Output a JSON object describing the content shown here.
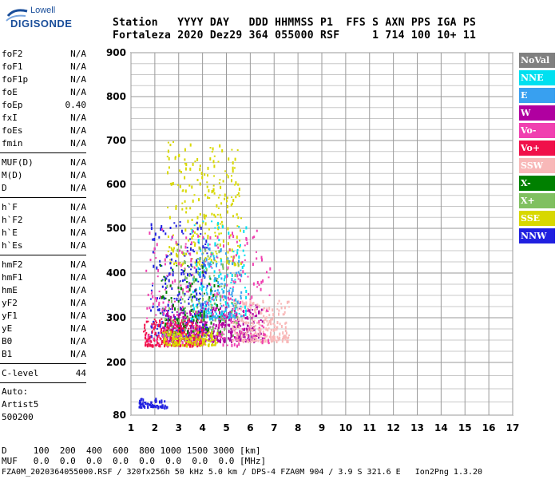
{
  "logo": {
    "top": "Lowell",
    "main": "DIGISONDE"
  },
  "header": {
    "line1": "Station   YYYY DAY   DDD HHMMSS P1  FFS S AXN PPS IGA PS",
    "line2": "Fortaleza 2020 Dez29 364 055000 RSF     1 714 100 10+ 11"
  },
  "params": {
    "group1": [
      {
        "name": "foF2",
        "value": "N/A"
      },
      {
        "name": "foF1",
        "value": "N/A"
      },
      {
        "name": "foF1p",
        "value": "N/A"
      },
      {
        "name": "foE",
        "value": "N/A"
      },
      {
        "name": "foEp",
        "value": "0.40"
      },
      {
        "name": "fxI",
        "value": "N/A"
      },
      {
        "name": "foEs",
        "value": "N/A"
      },
      {
        "name": "fmin",
        "value": "N/A"
      }
    ],
    "group2": [
      {
        "name": "MUF(D)",
        "value": "N/A"
      },
      {
        "name": "M(D)",
        "value": "N/A"
      },
      {
        "name": "D",
        "value": "N/A"
      }
    ],
    "group3": [
      {
        "name": "h`F",
        "value": "N/A"
      },
      {
        "name": "h`F2",
        "value": "N/A"
      },
      {
        "name": "h`E",
        "value": "N/A"
      },
      {
        "name": "h`Es",
        "value": "N/A"
      }
    ],
    "group4": [
      {
        "name": "hmF2",
        "value": "N/A"
      },
      {
        "name": "hmF1",
        "value": "N/A"
      },
      {
        "name": "hmE",
        "value": "N/A"
      },
      {
        "name": "yF2",
        "value": "N/A"
      },
      {
        "name": "yF1",
        "value": "N/A"
      },
      {
        "name": "yE",
        "value": "N/A"
      },
      {
        "name": "B0",
        "value": "N/A"
      },
      {
        "name": "B1",
        "value": "N/A"
      }
    ],
    "clevel": {
      "name": "C-level",
      "value": "44"
    }
  },
  "auto": {
    "line1": "Auto:",
    "line2": "Artist5",
    "line3": "500200"
  },
  "legend": [
    {
      "label": "NoVal",
      "color": "#808080"
    },
    {
      "label": "NNE",
      "color": "#00e0f0"
    },
    {
      "label": "E",
      "color": "#38a0f0"
    },
    {
      "label": "W",
      "color": "#b000a0"
    },
    {
      "label": "Vo-",
      "color": "#f040b0"
    },
    {
      "label": "Vo+",
      "color": "#f0104a"
    },
    {
      "label": "SSW",
      "color": "#f8b8b8"
    },
    {
      "label": "X-",
      "color": "#008000"
    },
    {
      "label": "X+",
      "color": "#80c060"
    },
    {
      "label": "SSE",
      "color": "#d8d800"
    },
    {
      "label": "NNW",
      "color": "#2020e0"
    }
  ],
  "chart_data": {
    "type": "scatter",
    "xlabel": "",
    "ylabel": "",
    "xlim": [
      1,
      17
    ],
    "ylim": [
      80,
      900
    ],
    "x_ticks": [
      "1",
      "2",
      "3",
      "4",
      "5",
      "6",
      "7",
      "8",
      "9",
      "10",
      "11",
      "12",
      "13",
      "14",
      "15",
      "16",
      "17"
    ],
    "y_ticks": [
      "80",
      "200",
      "300",
      "400",
      "500",
      "600",
      "700",
      "800",
      "900"
    ],
    "y_tick_values": [
      80,
      200,
      300,
      400,
      500,
      600,
      700,
      800,
      900
    ],
    "grid": true,
    "clusters": [
      {
        "name": "SSE",
        "color": "#d8d800",
        "x": [
          2.5,
          5.6
        ],
        "y": [
          420,
          700
        ],
        "density": 260
      },
      {
        "name": "NNW",
        "color": "#2020e0",
        "x": [
          1.8,
          4.2
        ],
        "y": [
          260,
          520
        ],
        "density": 260
      },
      {
        "name": "W",
        "color": "#b000a0",
        "x": [
          2.3,
          6.5
        ],
        "y": [
          250,
          330
        ],
        "density": 420
      },
      {
        "name": "Vo+",
        "color": "#f0104a",
        "x": [
          1.5,
          4.0
        ],
        "y": [
          240,
          300
        ],
        "density": 260
      },
      {
        "name": "SSW",
        "color": "#f8b8b8",
        "x": [
          5.2,
          7.6
        ],
        "y": [
          250,
          340
        ],
        "density": 260
      },
      {
        "name": "NNE",
        "color": "#00e0f0",
        "x": [
          3.5,
          5.8
        ],
        "y": [
          300,
          520
        ],
        "density": 140
      },
      {
        "name": "E",
        "color": "#38a0f0",
        "x": [
          3.8,
          5.6
        ],
        "y": [
          300,
          460
        ],
        "density": 120
      },
      {
        "name": "Vo-",
        "color": "#f040b0",
        "x": [
          1.6,
          6.8
        ],
        "y": [
          240,
          500
        ],
        "density": 260
      },
      {
        "name": "X-",
        "color": "#008000",
        "x": [
          2.2,
          4.8
        ],
        "y": [
          270,
          420
        ],
        "density": 100
      },
      {
        "name": "X+",
        "color": "#80c060",
        "x": [
          2.3,
          5.5
        ],
        "y": [
          260,
          470
        ],
        "density": 120
      },
      {
        "name": "SSE",
        "color": "#d8d800",
        "x": [
          2.3,
          4.6
        ],
        "y": [
          240,
          270
        ],
        "density": 140
      },
      {
        "name": "Es",
        "color": "#2020e0",
        "x": [
          1.3,
          2.5
        ],
        "y": [
          100,
          120
        ],
        "density": 60
      }
    ]
  },
  "footer": {
    "line1": "D     100  200  400  600  800 1000 1500 3000 [km]",
    "line2": "MUF   0.0  0.0  0.0  0.0  0.0  0.0  0.0  0.0 [MHz]",
    "line3": "FZA0M_2020364055000.RSF / 320fx256h 50 kHz 5.0 km / DPS-4 FZA0M 904 / 3.9 S 321.6 E   Ion2Png 1.3.20"
  }
}
